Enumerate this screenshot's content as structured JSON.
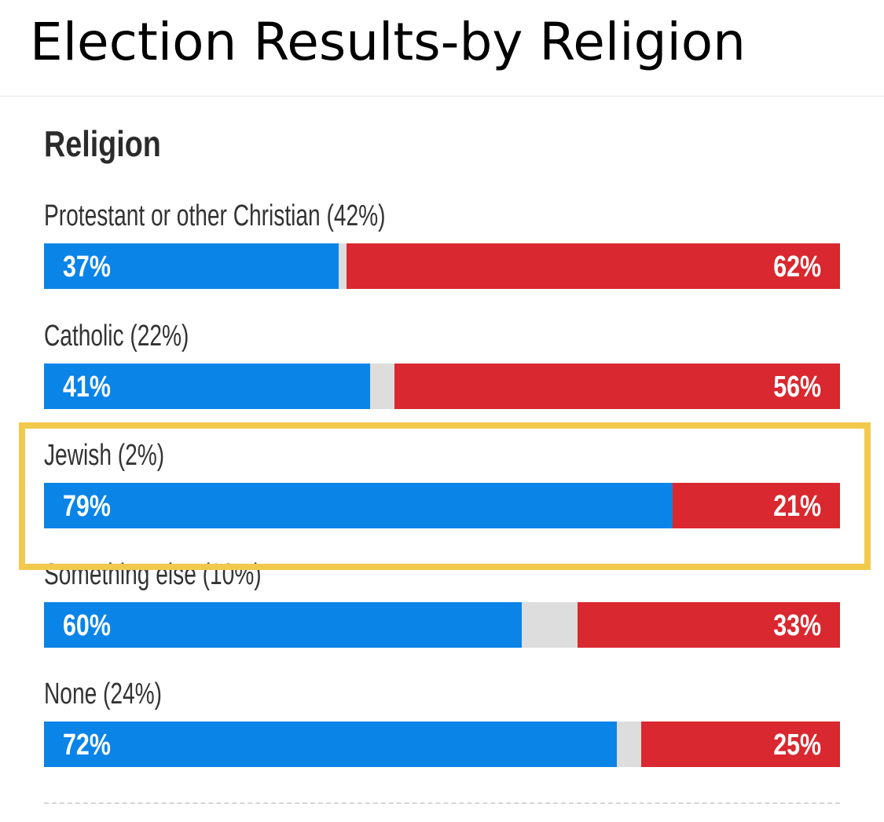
{
  "header": {
    "title": "Election Results-by Religion"
  },
  "colors": {
    "dem": "#0b84e8",
    "rep": "#d9282f",
    "other": "#dddddd",
    "highlight": "#f2c94c"
  },
  "chart_data": {
    "type": "bar",
    "orientation": "horizontal-stacked",
    "title": "Religion",
    "unit": "%",
    "highlighted_category": "Jewish (2%)",
    "categories": [
      "Protestant or other Christian (42%)",
      "Catholic (22%)",
      "Jewish (2%)",
      "Something else (10%)",
      "None (24%)"
    ],
    "series": [
      {
        "name": "blue",
        "values": [
          37,
          41,
          79,
          60,
          72
        ],
        "labels": [
          "37%",
          "41%",
          "79%",
          "60%",
          "72%"
        ]
      },
      {
        "name": "red",
        "values": [
          62,
          56,
          21,
          33,
          25
        ],
        "labels": [
          "62%",
          "56%",
          "21%",
          "33%",
          "25%"
        ]
      }
    ],
    "xlim": [
      0,
      100
    ]
  }
}
